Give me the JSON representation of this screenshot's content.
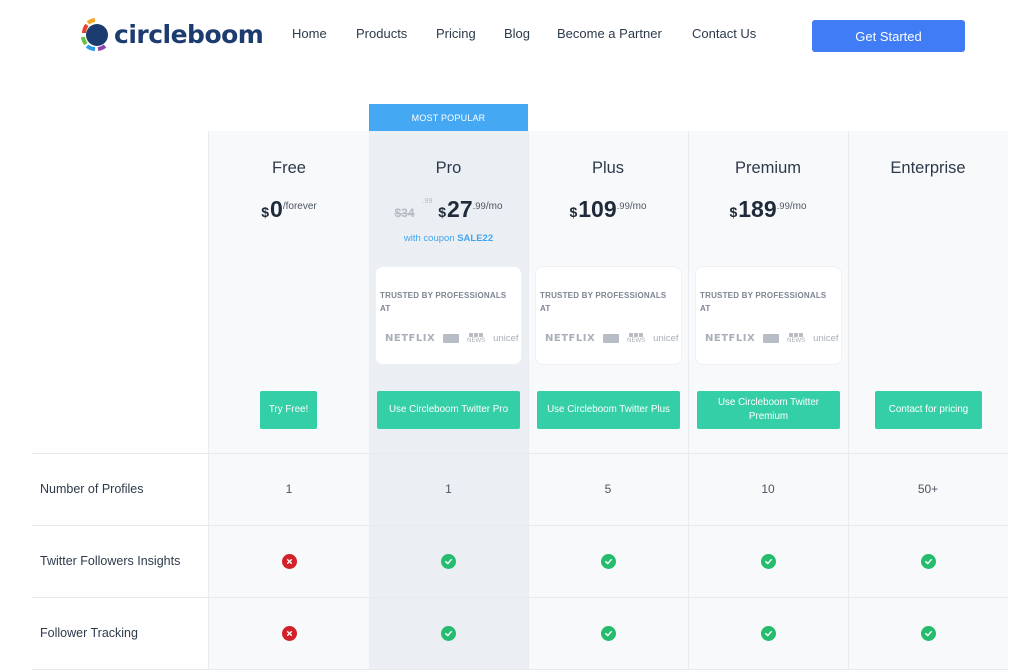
{
  "header": {
    "logo_text": "circleboom",
    "nav": [
      "Home",
      "Products",
      "Pricing",
      "Blog",
      "Become a Partner",
      "Contact Us"
    ],
    "cta_label": "Get Started",
    "accent_color": "#3f7cf6"
  },
  "badge": {
    "most_popular": "MOST POPULAR",
    "color": "#45a8f2"
  },
  "plans": [
    {
      "name": "Free",
      "currency": "$",
      "amount": "0",
      "cents": "",
      "period": "/forever",
      "old_price": "",
      "old_cents": "",
      "coupon_prefix": "",
      "coupon_code": "",
      "has_trust": false,
      "button": "Try Free!"
    },
    {
      "name": "Pro",
      "currency": "$",
      "amount": "27",
      "cents": ".99",
      "period": "/mo",
      "old_price": "$34",
      "old_cents": ".99",
      "coupon_prefix": "with coupon",
      "coupon_code": "SALE22",
      "has_trust": true,
      "button": "Use Circleboom Twitter Pro"
    },
    {
      "name": "Plus",
      "currency": "$",
      "amount": "109",
      "cents": ".99",
      "period": "/mo",
      "old_price": "",
      "old_cents": "",
      "coupon_prefix": "",
      "coupon_code": "",
      "has_trust": true,
      "button": "Use Circleboom Twitter Plus"
    },
    {
      "name": "Premium",
      "currency": "$",
      "amount": "189",
      "cents": ".99",
      "period": "/mo",
      "old_price": "",
      "old_cents": "",
      "coupon_prefix": "",
      "coupon_code": "",
      "has_trust": true,
      "button": "Use Circleboom Twitter Premium"
    },
    {
      "name": "Enterprise",
      "currency": "",
      "amount": "",
      "cents": "",
      "period": "",
      "old_price": "",
      "old_cents": "",
      "coupon_prefix": "",
      "coupon_code": "",
      "has_trust": false,
      "button": "Contact for pricing"
    }
  ],
  "trust": {
    "title": "TRUSTED BY PROFESSIONALS AT",
    "logos": [
      "NETFLIX",
      "amex-logo",
      "BBC NEWS",
      "unicef"
    ]
  },
  "features": [
    {
      "label": "Number of Profiles",
      "values": [
        "1",
        "1",
        "5",
        "10",
        "50+"
      ]
    },
    {
      "label": "Twitter Followers Insights",
      "values": [
        "no",
        "yes",
        "yes",
        "yes",
        "yes"
      ]
    },
    {
      "label": "Follower Tracking",
      "values": [
        "no",
        "yes",
        "yes",
        "yes",
        "yes"
      ]
    }
  ],
  "colors": {
    "button": "#35cfa7",
    "check": "#26bc6f",
    "cross": "#d22129"
  }
}
